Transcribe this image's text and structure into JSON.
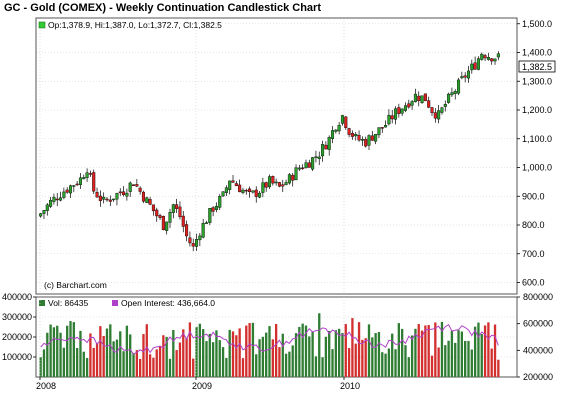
{
  "header": {
    "title": "GC - Gold (COMEX) - Weekly Continuation Candlestick Chart"
  },
  "price_panel": {
    "ohlc_label": "Op:1,378.9, Hi:1,387.0, Lo:1,372.7, Cl:1,382.5",
    "last_price": "1,382.5",
    "credit": "(c) Barchart.com"
  },
  "volume_panel": {
    "vol_label": "Vol: 86435",
    "oi_label": "Open Interest: 436,664.0"
  },
  "colors": {
    "up": "#2ca02c",
    "down": "#dd2020",
    "volume_up": "#2e7d32",
    "volume_down": "#d32f2f",
    "open_interest": "#b040c8",
    "grid": "#cccccc",
    "frame": "#555555"
  },
  "chart_data": [
    {
      "type": "candlestick",
      "title": "GC - Gold (COMEX) - Weekly Continuation Candlestick Chart",
      "x_range": [
        "2008-01",
        "2010-12"
      ],
      "ylim": [
        560,
        1520
      ],
      "grid": true,
      "y_ticks": [
        "1,500.0",
        "1,400.0",
        "1,300.0",
        "1,200.0",
        "1,100.0",
        "1,000.0",
        "900.0",
        "800.0",
        "700.0",
        "600.0"
      ],
      "y_tick_values": [
        1500,
        1400,
        1300,
        1200,
        1100,
        1000,
        900,
        800,
        700,
        600
      ],
      "x_ticks": [
        "2008",
        "2009",
        "2010"
      ],
      "close_path": [
        [
          0,
          840
        ],
        [
          3,
          880
        ],
        [
          6,
          910
        ],
        [
          9,
          935
        ],
        [
          12,
          960
        ],
        [
          14,
          1000
        ],
        [
          16,
          920
        ],
        [
          19,
          880
        ],
        [
          22,
          900
        ],
        [
          25,
          920
        ],
        [
          28,
          950
        ],
        [
          31,
          900
        ],
        [
          34,
          850
        ],
        [
          37,
          800
        ],
        [
          40,
          870
        ],
        [
          42,
          830
        ],
        [
          44,
          760
        ],
        [
          46,
          720
        ],
        [
          48,
          780
        ],
        [
          50,
          820
        ],
        [
          52,
          860
        ],
        [
          55,
          900
        ],
        [
          57,
          960
        ],
        [
          59,
          940
        ],
        [
          61,
          920
        ],
        [
          63,
          900
        ],
        [
          66,
          920
        ],
        [
          69,
          950
        ],
        [
          72,
          930
        ],
        [
          75,
          960
        ],
        [
          78,
          1000
        ],
        [
          81,
          1020
        ],
        [
          84,
          1050
        ],
        [
          87,
          1100
        ],
        [
          89,
          1150
        ],
        [
          91,
          1180
        ],
        [
          93,
          1130
        ],
        [
          95,
          1100
        ],
        [
          98,
          1090
        ],
        [
          101,
          1120
        ],
        [
          104,
          1150
        ],
        [
          107,
          1190
        ],
        [
          110,
          1220
        ],
        [
          113,
          1250
        ],
        [
          116,
          1240
        ],
        [
          118,
          1200
        ],
        [
          120,
          1180
        ],
        [
          122,
          1220
        ],
        [
          125,
          1270
        ],
        [
          128,
          1320
        ],
        [
          131,
          1360
        ],
        [
          133,
          1400
        ],
        [
          135,
          1390
        ],
        [
          138,
          1382
        ]
      ]
    },
    {
      "type": "bar",
      "title": "",
      "series": [
        {
          "name": "Vol",
          "last_value": 86435
        },
        {
          "name": "Open Interest",
          "last_value": 436664.0
        }
      ],
      "left_ylim": [
        0,
        400000
      ],
      "right_ylim": [
        200000,
        800000
      ],
      "left_ticks": [
        "400000",
        "300000",
        "200000",
        "100000"
      ],
      "left_tick_values": [
        400000,
        300000,
        200000,
        100000
      ],
      "right_ticks": [
        "800000",
        "600000",
        "400000",
        "200000"
      ],
      "right_tick_values": [
        800000,
        600000,
        400000,
        200000
      ]
    }
  ]
}
